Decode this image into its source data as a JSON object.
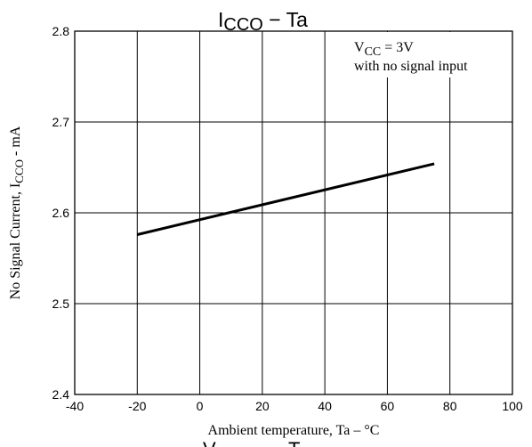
{
  "chart_data": {
    "type": "line",
    "title": {
      "main": "I",
      "sub": "CCO",
      "rest": " − Ta"
    },
    "xlabel": "Ambient temperature, Ta –  °C",
    "ylabel": {
      "pre": "No Signal Current, I",
      "sub": "CCO",
      "post": " - mA"
    },
    "annotation": {
      "line1_pre": "V",
      "line1_sub": "CC",
      "line1_post": " = 3V",
      "line2": "with no signal input"
    },
    "xlim": [
      -40,
      100
    ],
    "ylim": [
      2.4,
      2.8
    ],
    "x_ticks": [
      -40,
      -20,
      0,
      20,
      40,
      60,
      80,
      100
    ],
    "y_ticks": [
      2.4,
      2.5,
      2.6,
      2.7,
      2.8
    ],
    "x_tick_labels": [
      "-40",
      "-20",
      "0",
      "20",
      "40",
      "60",
      "80",
      "100"
    ],
    "y_tick_labels": [
      "2.4",
      "2.5",
      "2.6",
      "2.7",
      "2.8"
    ],
    "grid": true,
    "series": [
      {
        "x": [
          -20,
          75
        ],
        "y": [
          2.576,
          2.654
        ],
        "color": "#000000"
      }
    ],
    "clipped_footer": {
      "pre": "V",
      "mid": "T"
    }
  }
}
